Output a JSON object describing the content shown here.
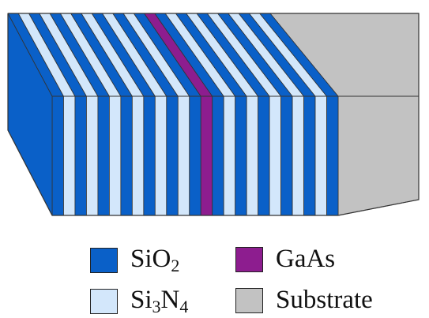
{
  "colors": {
    "sio2": "#0a60c8",
    "si3n4": "#d3e7fb",
    "gaas": "#8d1d8f",
    "substrate": "#c2c2c2",
    "outline": "#333333"
  },
  "stack": {
    "layer_sequence": [
      "sio2",
      "si3n4",
      "sio2",
      "si3n4",
      "sio2",
      "si3n4",
      "sio2",
      "si3n4",
      "sio2",
      "si3n4",
      "sio2",
      "si3n4",
      "sio2",
      "gaas",
      "sio2",
      "si3n4",
      "sio2",
      "si3n4",
      "sio2",
      "si3n4",
      "sio2",
      "si3n4",
      "sio2",
      "si3n4",
      "sio2"
    ]
  },
  "legend": {
    "sio2": {
      "base": "SiO",
      "sub": "2"
    },
    "gaas": {
      "label": "GaAs"
    },
    "si3n4": {
      "part1": "Si",
      "sub1": "3",
      "part2": "N",
      "sub2": "4"
    },
    "substrate": {
      "label": "Substrate"
    }
  }
}
